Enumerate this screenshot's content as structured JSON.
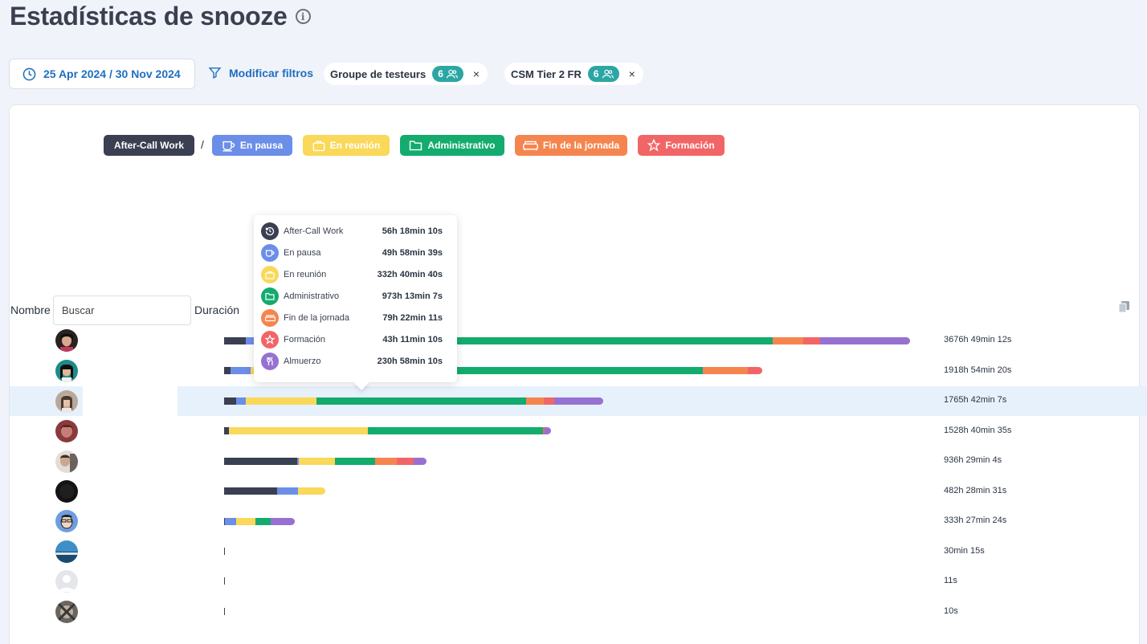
{
  "page": {
    "title": "Estadísticas de snooze",
    "info_icon": "i"
  },
  "filters": {
    "date_range": "25 Apr 2024 / 30 Nov 2024",
    "modify_label": "Modificar filtros",
    "chips": [
      {
        "label": "Groupe de testeurs",
        "count": "6"
      },
      {
        "label": "CSM Tier 2 FR",
        "count": "6"
      }
    ],
    "chip_close": "×"
  },
  "legend": {
    "separator": "/",
    "items": [
      {
        "label": "After-Call Work",
        "color": "#3b3f52"
      },
      {
        "label": "En pausa",
        "color": "#6b8ee8"
      },
      {
        "label": "En reunión",
        "color": "#f9d85a"
      },
      {
        "label": "Administrativo",
        "color": "#14ab6f"
      },
      {
        "label": "Fin de la jornada",
        "color": "#f5854f"
      },
      {
        "label": "Formación",
        "color": "#f26566"
      }
    ]
  },
  "table": {
    "col_name": "Nombre",
    "search_placeholder": "Buscar",
    "col_duration": "Duración"
  },
  "categories": [
    "After-Call Work",
    "En pausa",
    "En reunión",
    "Administrativo",
    "Fin de la jornada",
    "Formación",
    "Almuerzo"
  ],
  "category_colors": [
    "#3b3f52",
    "#6b8ee8",
    "#f9d85a",
    "#14ab6f",
    "#f5854f",
    "#f26566",
    "#9771d1"
  ],
  "rows": [
    {
      "total": "3676h 49min 12s",
      "segments": [
        56.3,
        49.98,
        332.68,
        973.22,
        79.37,
        43.19,
        230.98
      ]
    },
    {
      "total": "1918h 54min 20s",
      "segments": [
        17,
        52,
        317,
        847,
        116,
        36,
        0
      ]
    },
    {
      "total": "1765h 42min 7s",
      "segments": [
        32,
        23,
        183,
        540,
        45,
        27,
        127
      ]
    },
    {
      "total": "1528h 40min 35s",
      "segments": [
        13,
        0,
        357,
        451,
        0,
        5,
        15
      ]
    },
    {
      "total": "936h 29min 4s",
      "segments": [
        188,
        5,
        93,
        102,
        57,
        43,
        34
      ]
    },
    {
      "total": "482h 28min 31s",
      "segments": [
        137,
        54,
        70,
        0,
        0,
        0,
        0
      ]
    },
    {
      "total": "333h 27min 24s",
      "segments": [
        3,
        28,
        50,
        40,
        0,
        0,
        62
      ]
    },
    {
      "total": "30min 15s",
      "segments": []
    },
    {
      "total": "11s",
      "segments": []
    },
    {
      "total": "10s",
      "segments": []
    }
  ],
  "tooltip": {
    "items": [
      {
        "label": "After-Call Work",
        "value": "56h 18min 10s",
        "icon": "history-icon"
      },
      {
        "label": "En pausa",
        "value": "49h 58min 39s",
        "icon": "coffee-cup-icon"
      },
      {
        "label": "En reunión",
        "value": "332h 40min 40s",
        "icon": "briefcase-icon"
      },
      {
        "label": "Administrativo",
        "value": "973h 13min 7s",
        "icon": "folder-icon"
      },
      {
        "label": "Fin de la jornada",
        "value": "79h 22min 11s",
        "icon": "sofa-icon"
      },
      {
        "label": "Formación",
        "value": "43h 11min 10s",
        "icon": "star-icon"
      },
      {
        "label": "Almuerzo",
        "value": "230h 58min 10s",
        "icon": "cutlery-icon"
      }
    ]
  }
}
